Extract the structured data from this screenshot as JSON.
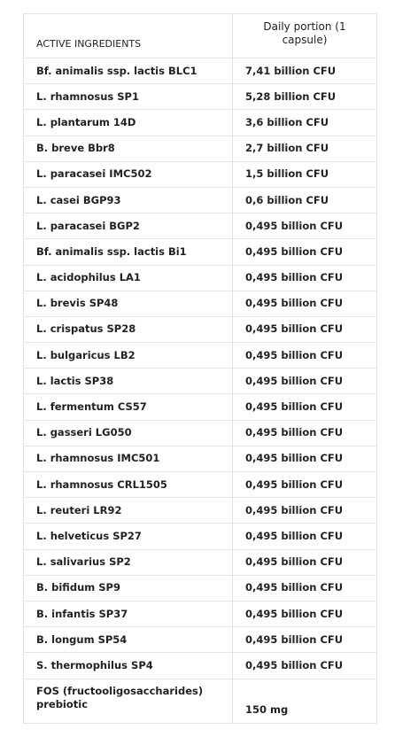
{
  "table": {
    "header": [
      "ACTIVE INGREDIENTS",
      "Daily portion (1 capsule)"
    ],
    "rows": [
      [
        "Bf. animalis ssp. lactis BLC1",
        "7,41 billion CFU"
      ],
      [
        "L. rhamnosus SP1",
        "5,28 billion CFU"
      ],
      [
        "L. plantarum 14D",
        "3,6 billion CFU"
      ],
      [
        "B. breve Bbr8",
        "2,7 billion CFU"
      ],
      [
        "L. paracasei IMC502",
        "1,5 billion CFU"
      ],
      [
        "L. casei BGP93",
        "0,6 billion CFU"
      ],
      [
        "L. paracasei BGP2",
        "0,495 billion CFU"
      ],
      [
        "Bf. animalis ssp. lactis Bi1",
        "0,495 billion CFU"
      ],
      [
        "L. acidophilus LA1",
        "0,495 billion CFU"
      ],
      [
        "L. brevis SP48",
        "0,495 billion CFU"
      ],
      [
        "L. crispatus SP28",
        "0,495 billion CFU"
      ],
      [
        "L. bulgaricus LB2",
        "0,495 billion CFU"
      ],
      [
        "L. lactis SP38",
        "0,495 billion CFU"
      ],
      [
        "L. fermentum CS57",
        "0,495 billion CFU"
      ],
      [
        "L. gasseri LG050",
        "0,495 billion CFU"
      ],
      [
        "L. rhamnosus IMC501",
        "0,495 billion CFU"
      ],
      [
        "L. rhamnosus CRL1505",
        "0,495 billion CFU"
      ],
      [
        "L. reuteri LR92",
        "0,495 billion CFU"
      ],
      [
        "L. helveticus SP27",
        "0,495 billion CFU"
      ],
      [
        "L. salivarius SP2",
        "0,495 billion CFU"
      ],
      [
        "B. bifidum SP9",
        "0,495 billion CFU"
      ],
      [
        "B. infantis SP37",
        "0,495 billion CFU"
      ],
      [
        "B. longum SP54",
        "0,495 billion CFU"
      ],
      [
        "S. thermophilus SP4",
        "0,495 billion CFU"
      ],
      [
        "FOS (fructooligosaccharides) prebiotic",
        "150 mg"
      ]
    ]
  }
}
